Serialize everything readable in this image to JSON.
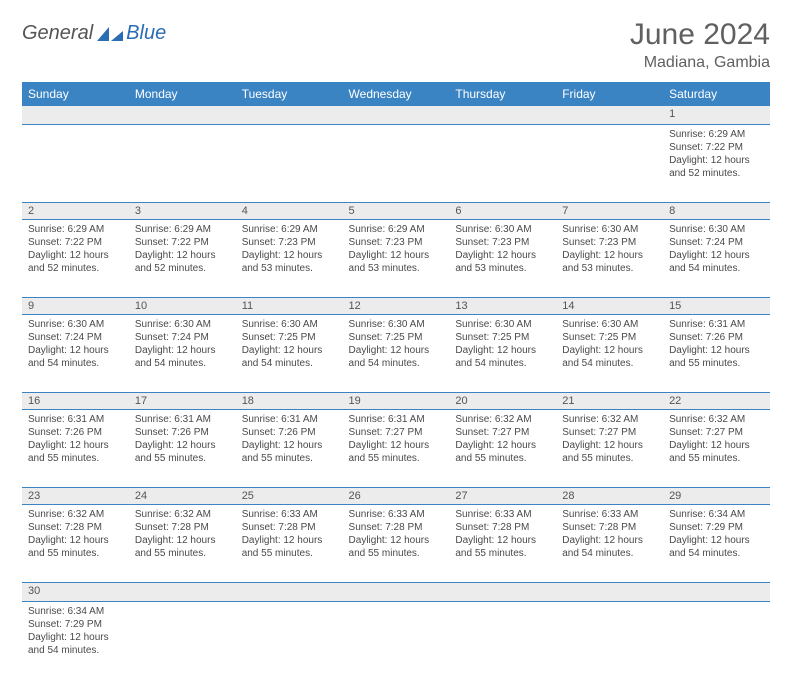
{
  "logo": {
    "part1": "General",
    "part2": "Blue"
  },
  "title": "June 2024",
  "location": "Madiana, Gambia",
  "colors": {
    "header_bg": "#3b84c4",
    "header_text": "#ffffff",
    "daynum_bg": "#ececec",
    "border": "#3b84c4",
    "body_text": "#4a4a4a",
    "title_text": "#606060"
  },
  "dayHeaders": [
    "Sunday",
    "Monday",
    "Tuesday",
    "Wednesday",
    "Thursday",
    "Friday",
    "Saturday"
  ],
  "sunriseLabel": "Sunrise: ",
  "sunsetLabel": "Sunset: ",
  "daylightLabel": "Daylight: ",
  "days": {
    "1": {
      "sunrise": "6:29 AM",
      "sunset": "7:22 PM",
      "dlh": "12",
      "dlm": "52"
    },
    "2": {
      "sunrise": "6:29 AM",
      "sunset": "7:22 PM",
      "dlh": "12",
      "dlm": "52"
    },
    "3": {
      "sunrise": "6:29 AM",
      "sunset": "7:22 PM",
      "dlh": "12",
      "dlm": "52"
    },
    "4": {
      "sunrise": "6:29 AM",
      "sunset": "7:23 PM",
      "dlh": "12",
      "dlm": "53"
    },
    "5": {
      "sunrise": "6:29 AM",
      "sunset": "7:23 PM",
      "dlh": "12",
      "dlm": "53"
    },
    "6": {
      "sunrise": "6:30 AM",
      "sunset": "7:23 PM",
      "dlh": "12",
      "dlm": "53"
    },
    "7": {
      "sunrise": "6:30 AM",
      "sunset": "7:23 PM",
      "dlh": "12",
      "dlm": "53"
    },
    "8": {
      "sunrise": "6:30 AM",
      "sunset": "7:24 PM",
      "dlh": "12",
      "dlm": "54"
    },
    "9": {
      "sunrise": "6:30 AM",
      "sunset": "7:24 PM",
      "dlh": "12",
      "dlm": "54"
    },
    "10": {
      "sunrise": "6:30 AM",
      "sunset": "7:24 PM",
      "dlh": "12",
      "dlm": "54"
    },
    "11": {
      "sunrise": "6:30 AM",
      "sunset": "7:25 PM",
      "dlh": "12",
      "dlm": "54"
    },
    "12": {
      "sunrise": "6:30 AM",
      "sunset": "7:25 PM",
      "dlh": "12",
      "dlm": "54"
    },
    "13": {
      "sunrise": "6:30 AM",
      "sunset": "7:25 PM",
      "dlh": "12",
      "dlm": "54"
    },
    "14": {
      "sunrise": "6:30 AM",
      "sunset": "7:25 PM",
      "dlh": "12",
      "dlm": "54"
    },
    "15": {
      "sunrise": "6:31 AM",
      "sunset": "7:26 PM",
      "dlh": "12",
      "dlm": "55"
    },
    "16": {
      "sunrise": "6:31 AM",
      "sunset": "7:26 PM",
      "dlh": "12",
      "dlm": "55"
    },
    "17": {
      "sunrise": "6:31 AM",
      "sunset": "7:26 PM",
      "dlh": "12",
      "dlm": "55"
    },
    "18": {
      "sunrise": "6:31 AM",
      "sunset": "7:26 PM",
      "dlh": "12",
      "dlm": "55"
    },
    "19": {
      "sunrise": "6:31 AM",
      "sunset": "7:27 PM",
      "dlh": "12",
      "dlm": "55"
    },
    "20": {
      "sunrise": "6:32 AM",
      "sunset": "7:27 PM",
      "dlh": "12",
      "dlm": "55"
    },
    "21": {
      "sunrise": "6:32 AM",
      "sunset": "7:27 PM",
      "dlh": "12",
      "dlm": "55"
    },
    "22": {
      "sunrise": "6:32 AM",
      "sunset": "7:27 PM",
      "dlh": "12",
      "dlm": "55"
    },
    "23": {
      "sunrise": "6:32 AM",
      "sunset": "7:28 PM",
      "dlh": "12",
      "dlm": "55"
    },
    "24": {
      "sunrise": "6:32 AM",
      "sunset": "7:28 PM",
      "dlh": "12",
      "dlm": "55"
    },
    "25": {
      "sunrise": "6:33 AM",
      "sunset": "7:28 PM",
      "dlh": "12",
      "dlm": "55"
    },
    "26": {
      "sunrise": "6:33 AM",
      "sunset": "7:28 PM",
      "dlh": "12",
      "dlm": "55"
    },
    "27": {
      "sunrise": "6:33 AM",
      "sunset": "7:28 PM",
      "dlh": "12",
      "dlm": "55"
    },
    "28": {
      "sunrise": "6:33 AM",
      "sunset": "7:28 PM",
      "dlh": "12",
      "dlm": "54"
    },
    "29": {
      "sunrise": "6:34 AM",
      "sunset": "7:29 PM",
      "dlh": "12",
      "dlm": "54"
    },
    "30": {
      "sunrise": "6:34 AM",
      "sunset": "7:29 PM",
      "dlh": "12",
      "dlm": "54"
    }
  },
  "weeks": [
    [
      null,
      null,
      null,
      null,
      null,
      null,
      "1"
    ],
    [
      "2",
      "3",
      "4",
      "5",
      "6",
      "7",
      "8"
    ],
    [
      "9",
      "10",
      "11",
      "12",
      "13",
      "14",
      "15"
    ],
    [
      "16",
      "17",
      "18",
      "19",
      "20",
      "21",
      "22"
    ],
    [
      "23",
      "24",
      "25",
      "26",
      "27",
      "28",
      "29"
    ],
    [
      "30",
      null,
      null,
      null,
      null,
      null,
      null
    ]
  ]
}
